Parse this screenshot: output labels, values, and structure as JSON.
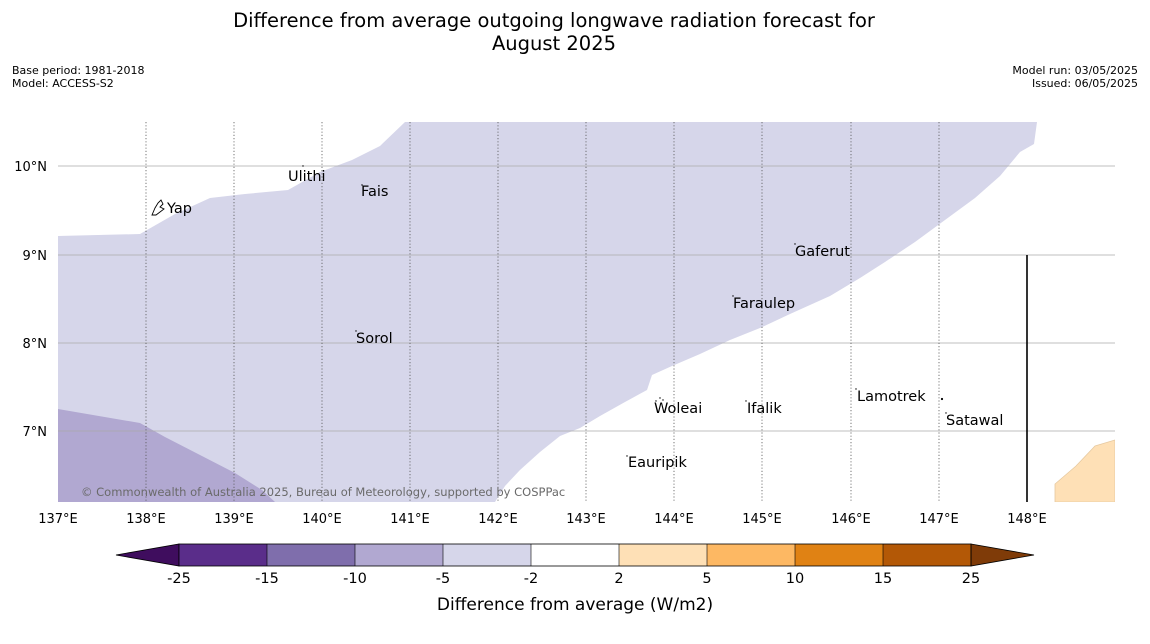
{
  "header": {
    "title_line1": "Difference from average outgoing longwave radiation forecast for",
    "title_line2": "August 2025",
    "base_period": "Base period: 1981-2018",
    "model": "Model: ACCESS-S2",
    "model_run": "Model run: 03/05/2025",
    "issued": "Issued: 06/05/2025"
  },
  "map": {
    "lat_labels": [
      "10°N",
      "9°N",
      "8°N",
      "7°N"
    ],
    "lon_labels": [
      "137°E",
      "138°E",
      "139°E",
      "140°E",
      "141°E",
      "142°E",
      "143°E",
      "144°E",
      "145°E",
      "146°E",
      "147°E",
      "148°E"
    ],
    "places": [
      "Ulithi",
      "Fais",
      "Yap",
      "Gaferut",
      "Faraulep",
      "Sorol",
      "Lamotrek",
      "Woleai",
      "Ifalik",
      "Satawal",
      "Eauripik"
    ],
    "copyright": "© Commonwealth of Australia 2025, Bureau of Meteorology, supported by COSPPac"
  },
  "colorbar": {
    "ticks": [
      "-25",
      "-15",
      "-10",
      "-5",
      "-2",
      "2",
      "5",
      "10",
      "15",
      "25"
    ],
    "colors": [
      "#3f0d5e",
      "#5a2d8a",
      "#7f6eac",
      "#b1a8d1",
      "#d6d6ea",
      "#ffffff",
      "#fee0b6",
      "#fdb863",
      "#e08214",
      "#b35806",
      "#7f3b08"
    ],
    "label": "Difference from average (W/m2)"
  }
}
